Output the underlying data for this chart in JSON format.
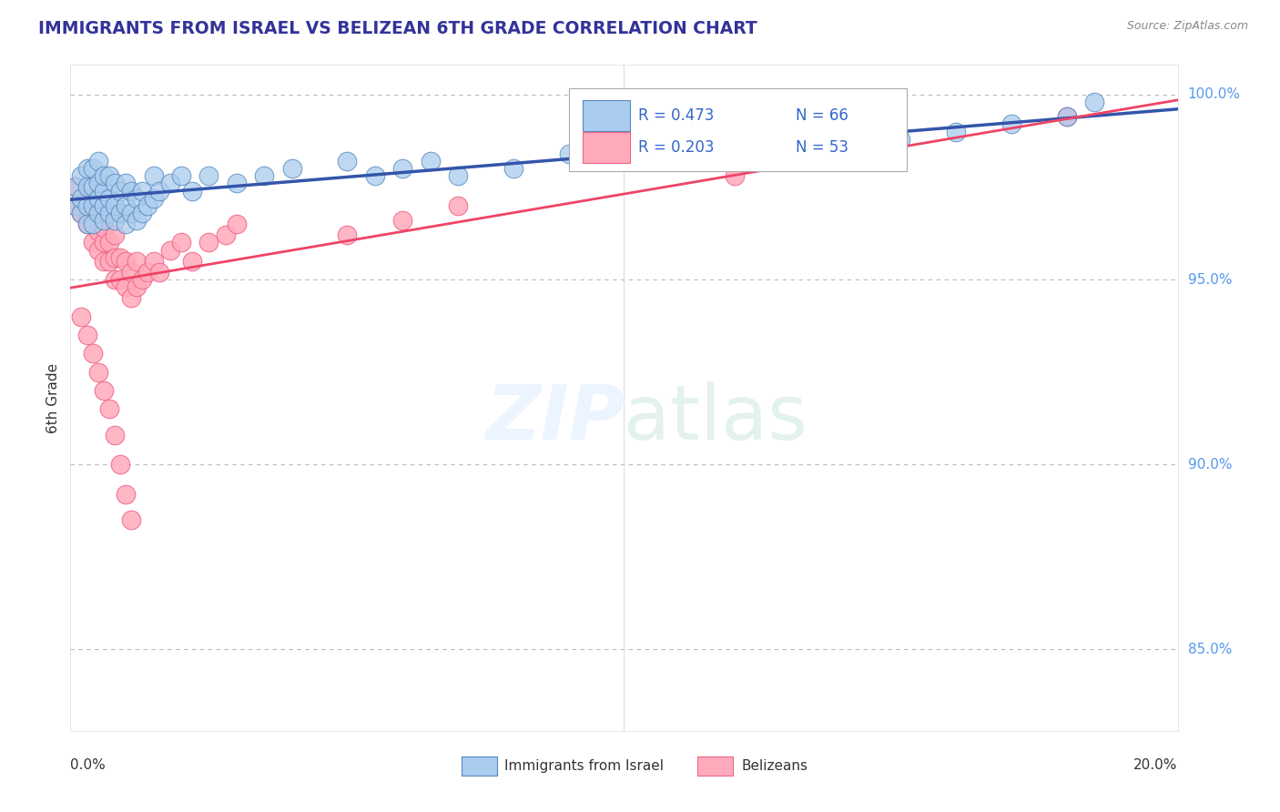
{
  "title": "IMMIGRANTS FROM ISRAEL VS BELIZEAN 6TH GRADE CORRELATION CHART",
  "source": "Source: ZipAtlas.com",
  "ylabel": "6th Grade",
  "watermark_zip": "ZIP",
  "watermark_atlas": "atlas",
  "legend_blue_label": "Immigrants from Israel",
  "legend_pink_label": "Belizeans",
  "legend_blue_R": "R = 0.473",
  "legend_blue_N": "N = 66",
  "legend_pink_R": "R = 0.203",
  "legend_pink_N": "N = 53",
  "blue_face": "#AACCEE",
  "blue_edge": "#5588BB",
  "pink_face": "#FFAABB",
  "pink_edge": "#EE6688",
  "blue_trend": "#3355AA",
  "pink_trend": "#EE4466",
  "grid_color": "#CCCCCC",
  "dashed_color": "#BBBBBB",
  "right_label_color": "#5599EE",
  "xmin": 0.0,
  "xmax": 0.2,
  "ymin": 0.828,
  "ymax": 1.008,
  "ytick_vals": [
    0.85,
    0.9,
    0.95,
    1.0
  ],
  "ytick_labels": [
    "85.0%",
    "90.0%",
    "95.0%",
    "100.0%"
  ],
  "blue_x": [
    0.001,
    0.001,
    0.002,
    0.002,
    0.002,
    0.003,
    0.003,
    0.003,
    0.003,
    0.004,
    0.004,
    0.004,
    0.004,
    0.005,
    0.005,
    0.005,
    0.005,
    0.006,
    0.006,
    0.006,
    0.006,
    0.007,
    0.007,
    0.007,
    0.008,
    0.008,
    0.008,
    0.009,
    0.009,
    0.01,
    0.01,
    0.01,
    0.011,
    0.011,
    0.012,
    0.012,
    0.013,
    0.013,
    0.014,
    0.015,
    0.015,
    0.016,
    0.018,
    0.02,
    0.022,
    0.025,
    0.03,
    0.035,
    0.04,
    0.05,
    0.055,
    0.06,
    0.065,
    0.07,
    0.08,
    0.09,
    0.1,
    0.11,
    0.12,
    0.13,
    0.14,
    0.15,
    0.16,
    0.17,
    0.18,
    0.185
  ],
  "blue_y": [
    0.97,
    0.975,
    0.968,
    0.972,
    0.978,
    0.965,
    0.97,
    0.975,
    0.98,
    0.965,
    0.97,
    0.975,
    0.98,
    0.968,
    0.972,
    0.976,
    0.982,
    0.966,
    0.97,
    0.974,
    0.978,
    0.968,
    0.972,
    0.978,
    0.966,
    0.97,
    0.976,
    0.968,
    0.974,
    0.965,
    0.97,
    0.976,
    0.968,
    0.974,
    0.966,
    0.972,
    0.968,
    0.974,
    0.97,
    0.972,
    0.978,
    0.974,
    0.976,
    0.978,
    0.974,
    0.978,
    0.976,
    0.978,
    0.98,
    0.982,
    0.978,
    0.98,
    0.982,
    0.978,
    0.98,
    0.984,
    0.982,
    0.984,
    0.986,
    0.988,
    0.986,
    0.988,
    0.99,
    0.992,
    0.994,
    0.998
  ],
  "pink_x": [
    0.001,
    0.001,
    0.002,
    0.002,
    0.003,
    0.003,
    0.003,
    0.004,
    0.004,
    0.005,
    0.005,
    0.005,
    0.006,
    0.006,
    0.006,
    0.007,
    0.007,
    0.008,
    0.008,
    0.008,
    0.009,
    0.009,
    0.01,
    0.01,
    0.011,
    0.011,
    0.012,
    0.012,
    0.013,
    0.014,
    0.015,
    0.016,
    0.018,
    0.02,
    0.022,
    0.025,
    0.028,
    0.03,
    0.002,
    0.003,
    0.004,
    0.005,
    0.006,
    0.007,
    0.008,
    0.009,
    0.01,
    0.011,
    0.05,
    0.06,
    0.07,
    0.12,
    0.18
  ],
  "pink_y": [
    0.97,
    0.975,
    0.968,
    0.972,
    0.965,
    0.968,
    0.972,
    0.96,
    0.966,
    0.958,
    0.963,
    0.968,
    0.955,
    0.96,
    0.964,
    0.955,
    0.96,
    0.95,
    0.956,
    0.962,
    0.95,
    0.956,
    0.948,
    0.955,
    0.945,
    0.952,
    0.948,
    0.955,
    0.95,
    0.952,
    0.955,
    0.952,
    0.958,
    0.96,
    0.955,
    0.96,
    0.962,
    0.965,
    0.94,
    0.935,
    0.93,
    0.925,
    0.92,
    0.915,
    0.908,
    0.9,
    0.892,
    0.885,
    0.962,
    0.966,
    0.97,
    0.978,
    0.994
  ]
}
